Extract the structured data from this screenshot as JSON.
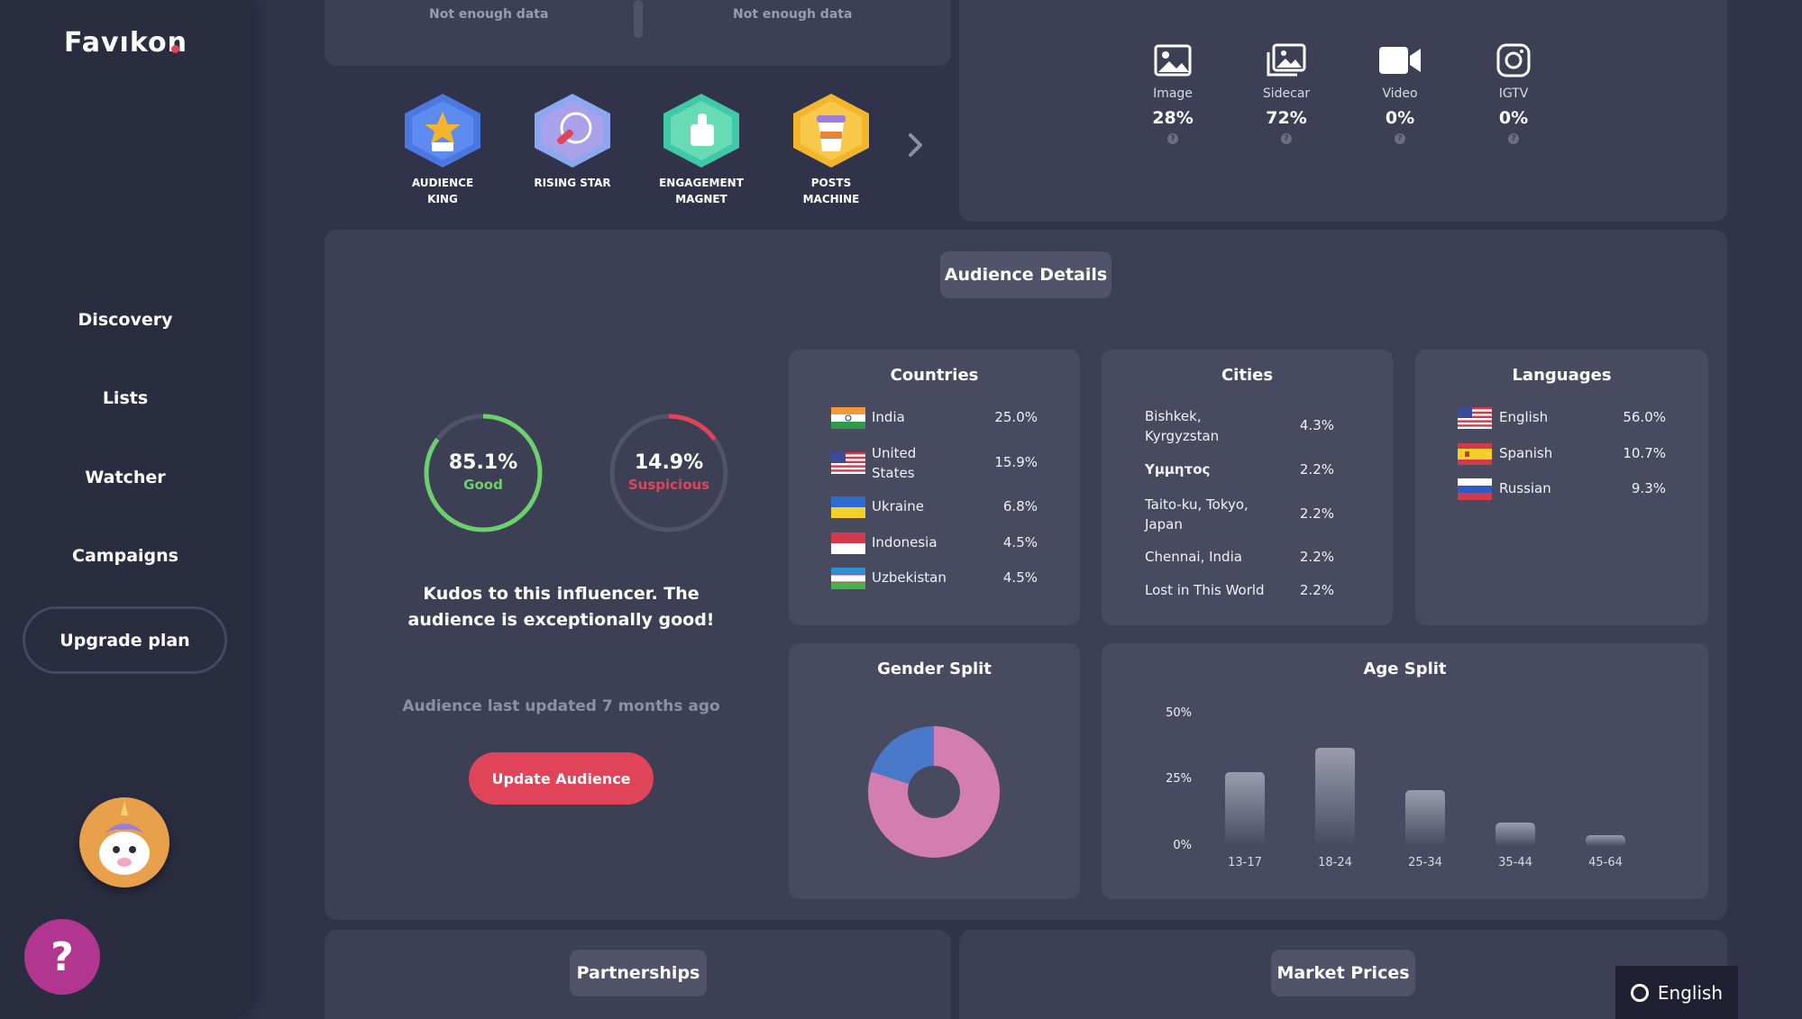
{
  "brand": {
    "logo": "Favıkon"
  },
  "sidebar": {
    "items": [
      {
        "label": "Discovery"
      },
      {
        "label": "Lists"
      },
      {
        "label": "Watcher"
      },
      {
        "label": "Campaigns"
      }
    ],
    "upgrade_label": "Upgrade plan",
    "help_label": "?"
  },
  "top": {
    "not_enough_left": "Not enough data",
    "not_enough_right": "Not enough data",
    "badges": [
      {
        "label": "AUDIENCE KING",
        "icon": "crown-star-icon",
        "color": "#4a78e0"
      },
      {
        "label": "RISING STAR",
        "icon": "rocket-icon",
        "color": "#8aa7f0"
      },
      {
        "label": "ENGAGEMENT MAGNET",
        "label_line1": "ENGAGEMENT",
        "label_line2": "MAGNET",
        "icon": "thumbs-up-icon",
        "color": "#3fc9a6"
      },
      {
        "label": "POSTS MACHINE",
        "icon": "coffee-cup-icon",
        "color": "#f3b52b"
      }
    ],
    "content_types": [
      {
        "label": "Image",
        "pct": "28%",
        "icon": "image-icon"
      },
      {
        "label": "Sidecar",
        "pct": "72%",
        "icon": "sidecar-icon"
      },
      {
        "label": "Video",
        "pct": "0%",
        "icon": "video-icon"
      },
      {
        "label": "IGTV",
        "pct": "0%",
        "icon": "instagram-icon"
      }
    ]
  },
  "audience": {
    "title": "Audience Details",
    "good": {
      "value": "85.1%",
      "label": "Good",
      "fraction": 0.851,
      "color": "#6cd06c"
    },
    "suspicious": {
      "value": "14.9%",
      "label": "Suspicious",
      "fraction": 0.149,
      "color": "#df4459"
    },
    "kudos": "Kudos to this influencer. The audience is exceptionally good!",
    "last_updated": "Audience last updated 7 months ago",
    "update_button": "Update Audience",
    "countries": {
      "title": "Countries",
      "rows": [
        {
          "name": "India",
          "value": "25.0%"
        },
        {
          "name_line1": "United",
          "name_line2": "States",
          "name": "United States",
          "value": "15.9%"
        },
        {
          "name": "Ukraine",
          "value": "6.8%"
        },
        {
          "name": "Indonesia",
          "value": "4.5%"
        },
        {
          "name": "Uzbekistan",
          "value": "4.5%"
        }
      ]
    },
    "cities": {
      "title": "Cities",
      "rows": [
        {
          "name_line1": "Bishkek,",
          "name_line2": "Kyrgyzstan",
          "value": "4.3%"
        },
        {
          "name": "Υμμητος",
          "value": "2.2%"
        },
        {
          "name_line1": "Taito-ku, Tokyo,",
          "name_line2": "Japan",
          "value": "2.2%"
        },
        {
          "name": "Chennai, India",
          "value": "2.2%"
        },
        {
          "name": "Lost in This World",
          "value": "2.2%"
        }
      ]
    },
    "languages": {
      "title": "Languages",
      "rows": [
        {
          "name": "English",
          "value": "56.0%"
        },
        {
          "name": "Spanish",
          "value": "10.7%"
        },
        {
          "name": "Russian",
          "value": "9.3%"
        }
      ]
    },
    "gender": {
      "title": "Gender Split",
      "female_fraction": 0.8,
      "female_color": "#d47db3",
      "male_color": "#4a78c8"
    },
    "age": {
      "title": "Age Split",
      "ticks": [
        "50%",
        "25%",
        "0%"
      ],
      "categories": [
        "13-17",
        "18-24",
        "25-34",
        "35-44",
        "45-64"
      ],
      "values": [
        28,
        37,
        21,
        9,
        4
      ]
    }
  },
  "bottom": {
    "partnerships": "Partnerships",
    "market_prices": "Market Prices"
  },
  "language_toggle": "English"
}
